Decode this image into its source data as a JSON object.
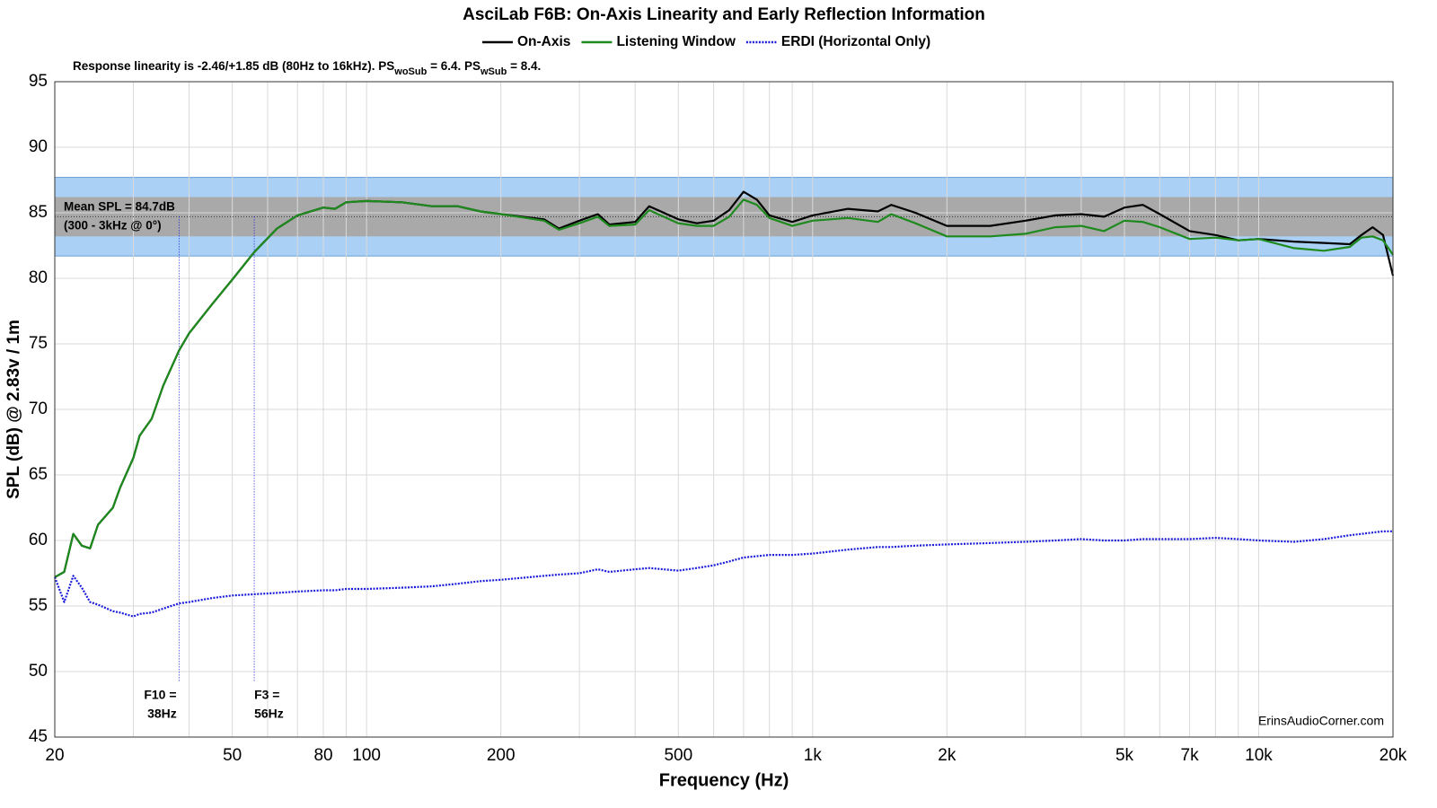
{
  "chart_data": {
    "type": "line",
    "title": "AsciLab F6B: On-Axis Linearity and Early Reflection Information",
    "subtitle_parts": [
      "Response linearity is -2.46/+1.85 dB (80Hz to 16kHz).  PS",
      "woSub",
      " = 6.4.  PS",
      "wSub",
      " = 8.4."
    ],
    "xlabel": "Frequency (Hz)",
    "ylabel": "SPL (dB) @ 2.83v / 1m",
    "watermark": "ErinsAudioCorner.com",
    "xscale": "log",
    "grid": true,
    "xlim": [
      20,
      20000
    ],
    "ylim": [
      45,
      95
    ],
    "yticks": [
      45,
      50,
      55,
      60,
      65,
      70,
      75,
      80,
      85,
      90,
      95
    ],
    "xticks": [
      20,
      50,
      80,
      100,
      200,
      500,
      {
        "value": 1000,
        "label": "1k"
      },
      {
        "value": 2000,
        "label": "2k"
      },
      {
        "value": 5000,
        "label": "5k"
      },
      {
        "value": 7000,
        "label": "7k"
      },
      {
        "value": 10000,
        "label": "10k"
      },
      {
        "value": 20000,
        "label": "20k"
      }
    ],
    "xgrid": [
      30,
      40,
      60,
      70,
      90,
      300,
      400,
      600,
      700,
      800,
      900,
      3000,
      4000,
      6000,
      8000,
      9000
    ],
    "mean_spl": {
      "value": 84.7,
      "label_lines": [
        "Mean SPL = 84.7dB",
        "(300 - 3kHz @ 0°)"
      ]
    },
    "bands": [
      {
        "low": 81.7,
        "high": 87.7,
        "color": "#abd0f5"
      },
      {
        "low": 83.2,
        "high": 86.2,
        "color": "#a9a9a9"
      }
    ],
    "markers": [
      {
        "x": 38,
        "label_lines": [
          "F10 =",
          "38Hz"
        ]
      },
      {
        "x": 56,
        "label_lines": [
          "F3 =",
          "56Hz"
        ]
      }
    ],
    "x": [
      20,
      21,
      22,
      23,
      24,
      25,
      27,
      28,
      30,
      31,
      33,
      35,
      38,
      40,
      45,
      50,
      56,
      63,
      70,
      80,
      85,
      90,
      100,
      120,
      140,
      160,
      180,
      200,
      250,
      270,
      300,
      330,
      350,
      400,
      430,
      500,
      550,
      600,
      650,
      700,
      750,
      800,
      900,
      1000,
      1200,
      1400,
      1500,
      1700,
      2000,
      2500,
      3000,
      3500,
      4000,
      4500,
      5000,
      5500,
      6000,
      7000,
      8000,
      9000,
      10000,
      12000,
      14000,
      16000,
      17000,
      18000,
      19000,
      20000
    ],
    "series": [
      {
        "name": "On-Axis",
        "color": "#000000",
        "dash": "none",
        "values": [
          57.2,
          57.6,
          60.5,
          59.6,
          59.4,
          61.2,
          62.5,
          64,
          66.3,
          68,
          69.3,
          71.8,
          74.5,
          75.8,
          78,
          79.9,
          82,
          83.8,
          84.8,
          85.4,
          85.3,
          85.8,
          85.9,
          85.8,
          85.5,
          85.5,
          85.1,
          84.9,
          84.5,
          83.8,
          84.4,
          84.9,
          84.1,
          84.3,
          85.5,
          84.5,
          84.2,
          84.4,
          85.2,
          86.6,
          86.0,
          84.8,
          84.3,
          84.8,
          85.3,
          85.1,
          85.6,
          85.0,
          84.0,
          84.0,
          84.4,
          84.8,
          84.9,
          84.7,
          85.4,
          85.6,
          84.9,
          83.6,
          83.3,
          82.9,
          83.0,
          82.8,
          82.7,
          82.6,
          83.3,
          83.9,
          83.3,
          80.2
        ]
      },
      {
        "name": "Listening Window",
        "color": "#1e8a1e",
        "dash": "none",
        "values": [
          57.2,
          57.6,
          60.5,
          59.6,
          59.4,
          61.2,
          62.5,
          64,
          66.3,
          68,
          69.3,
          71.8,
          74.5,
          75.8,
          78,
          79.9,
          82,
          83.8,
          84.8,
          85.4,
          85.3,
          85.8,
          85.9,
          85.8,
          85.5,
          85.5,
          85.1,
          84.9,
          84.4,
          83.7,
          84.2,
          84.7,
          84.0,
          84.1,
          85.2,
          84.2,
          84.0,
          84.0,
          84.7,
          86.0,
          85.6,
          84.6,
          84.0,
          84.4,
          84.6,
          84.3,
          84.9,
          84.2,
          83.2,
          83.2,
          83.4,
          83.9,
          84.0,
          83.6,
          84.4,
          84.3,
          83.9,
          83.0,
          83.1,
          82.9,
          83.0,
          82.3,
          82.1,
          82.4,
          83.1,
          83.2,
          82.9,
          81.8
        ]
      },
      {
        "name": "ERDI (Horizontal Only)",
        "color": "#1a1adb",
        "dash": "dotted",
        "values": [
          57.2,
          55.3,
          57.3,
          56.4,
          55.3,
          55.1,
          54.6,
          54.5,
          54.2,
          54.4,
          54.5,
          54.8,
          55.2,
          55.3,
          55.6,
          55.8,
          55.9,
          56.0,
          56.1,
          56.2,
          56.2,
          56.3,
          56.3,
          56.4,
          56.5,
          56.7,
          56.9,
          57.0,
          57.3,
          57.4,
          57.5,
          57.8,
          57.6,
          57.8,
          57.9,
          57.7,
          57.9,
          58.1,
          58.4,
          58.7,
          58.8,
          58.9,
          58.9,
          59.0,
          59.3,
          59.5,
          59.5,
          59.6,
          59.7,
          59.8,
          59.9,
          60.0,
          60.1,
          60.0,
          60.0,
          60.1,
          60.1,
          60.1,
          60.2,
          60.1,
          60.0,
          59.9,
          60.1,
          60.4,
          60.5,
          60.6,
          60.7,
          60.7
        ]
      }
    ]
  }
}
